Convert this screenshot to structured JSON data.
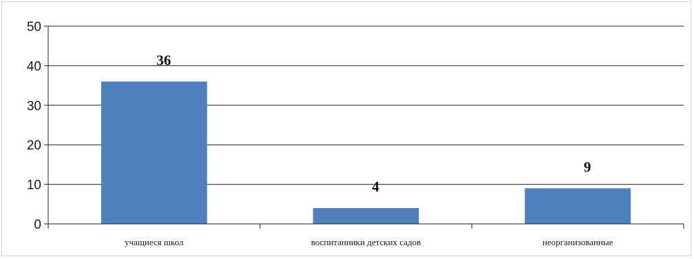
{
  "chart_data": {
    "type": "bar",
    "categories": [
      "учащиеся школ",
      "воспитанники детских садов",
      "неорганизованные"
    ],
    "values": [
      36,
      4,
      9
    ],
    "data_labels": [
      "36",
      "4",
      "9"
    ],
    "ylim": [
      0,
      50
    ],
    "yticks": [
      0,
      10,
      20,
      30,
      40,
      50
    ],
    "ytick_labels": [
      "0",
      "10",
      "20",
      "30",
      "40",
      "50"
    ],
    "grid": true,
    "legend": "none",
    "bar_color": "#4f81bd",
    "grid_color": "#1f1f1f"
  }
}
